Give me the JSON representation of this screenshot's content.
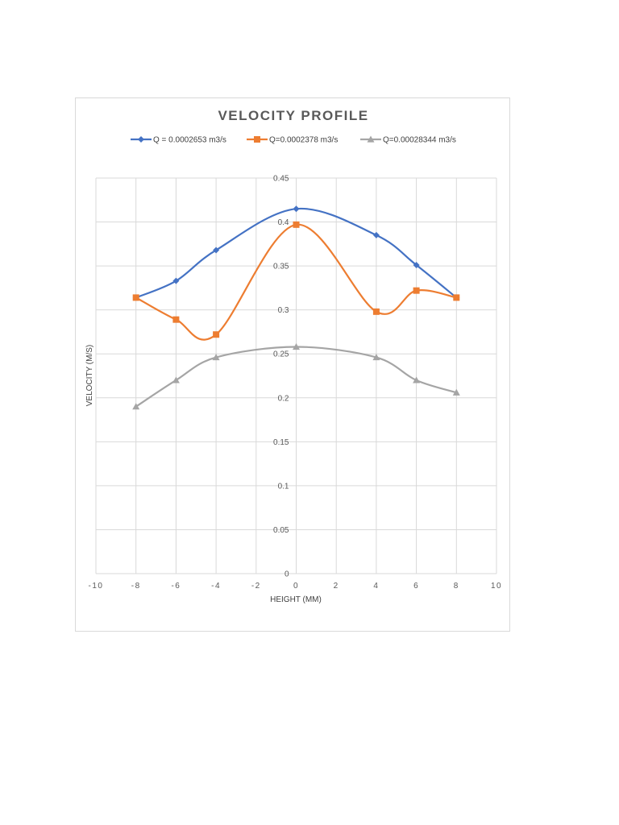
{
  "chart_data": {
    "type": "line",
    "smooth": true,
    "title": "VELOCITY PROFILE",
    "xlabel": "HEIGHT (MM)",
    "ylabel": "VELOCITY (M/S)",
    "xlim": [
      -10,
      10
    ],
    "ylim": [
      0,
      0.45
    ],
    "xticks": [
      -10,
      -8,
      -6,
      -4,
      -2,
      0,
      2,
      4,
      6,
      8,
      10
    ],
    "yticks": [
      0,
      0.05,
      0.1,
      0.15,
      0.2,
      0.25,
      0.3,
      0.35,
      0.4,
      0.45
    ],
    "grid": true,
    "legend_position": "top",
    "series": [
      {
        "name": "Q = 0.0002653 m3/s",
        "color": "#4472C4",
        "marker": "diamond",
        "x": [
          -8,
          -6,
          -4,
          0,
          4,
          6,
          8
        ],
        "y": [
          0.314,
          0.333,
          0.368,
          0.415,
          0.385,
          0.351,
          0.314
        ]
      },
      {
        "name": "Q=0.0002378 m3/s",
        "color": "#ED7D31",
        "marker": "square",
        "x": [
          -8,
          -6,
          -4,
          0,
          4,
          6,
          8
        ],
        "y": [
          0.314,
          0.289,
          0.272,
          0.397,
          0.298,
          0.322,
          0.314
        ]
      },
      {
        "name": "Q=0.00028344 m3/s",
        "color": "#A5A5A5",
        "marker": "triangle",
        "x": [
          -8,
          -6,
          -4,
          0,
          4,
          6,
          8
        ],
        "y": [
          0.19,
          0.22,
          0.246,
          0.258,
          0.246,
          0.22,
          0.206
        ]
      }
    ]
  }
}
